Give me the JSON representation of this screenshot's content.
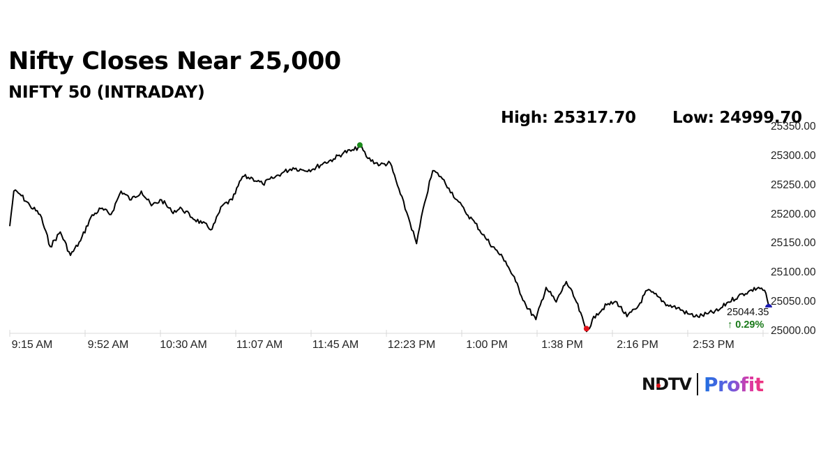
{
  "header": {
    "title": "Nifty Closes Near 25,000",
    "subtitle": "NIFTY 50 (INTRADAY)",
    "high_label": "High: 25317.70",
    "low_label": "Low: 24999.70"
  },
  "last_price": {
    "value": "25044.35",
    "change": "↑ 0.29%",
    "change_color": "#1a7a1a"
  },
  "logo": {
    "brand": "NDTV",
    "product": "Profit"
  },
  "colors": {
    "line": "#000000",
    "high_marker": "#1a8a1a",
    "low_marker": "#e0121a",
    "last_marker": "#1a1ab0",
    "axis": "#d0d0d0"
  },
  "chart_data": {
    "type": "line",
    "title": "Nifty Closes Near 25,000",
    "subtitle": "NIFTY 50 (INTRADAY)",
    "xlabel": "",
    "ylabel": "",
    "ylim": [
      25000,
      25350
    ],
    "y_ticks": [
      "25350.00",
      "25300.00",
      "25250.00",
      "25200.00",
      "25150.00",
      "25100.00",
      "25050.00",
      "25000.00"
    ],
    "x_ticks": [
      "9:15 AM",
      "9:52 AM",
      "10:30 AM",
      "11:07 AM",
      "11:45 AM",
      "12:23 PM",
      "1:00 PM",
      "1:38 PM",
      "2:16 PM",
      "2:53 PM"
    ],
    "grid": false,
    "legend": "none",
    "annotations": {
      "high": {
        "value": 25317.7,
        "time": "~12:08 PM",
        "marker": "green dot"
      },
      "low": {
        "value": 24999.7,
        "time": "~1:55 PM",
        "marker": "red dot"
      },
      "last": {
        "value": 25044.35,
        "change_pct": 0.29,
        "time": "3:30 PM",
        "marker": "blue semicircle"
      }
    },
    "series": [
      {
        "name": "NIFTY 50",
        "x": [
          "9:15",
          "9:17",
          "9:20",
          "9:25",
          "9:30",
          "9:35",
          "9:40",
          "9:45",
          "9:50",
          "9:55",
          "10:00",
          "10:05",
          "10:10",
          "10:15",
          "10:20",
          "10:25",
          "10:30",
          "10:35",
          "10:40",
          "10:45",
          "10:50",
          "10:55",
          "11:00",
          "11:05",
          "11:10",
          "11:15",
          "11:20",
          "11:25",
          "11:30",
          "11:35",
          "11:40",
          "11:45",
          "11:50",
          "11:55",
          "12:00",
          "12:05",
          "12:08",
          "12:12",
          "12:18",
          "12:23",
          "12:28",
          "12:32",
          "12:36",
          "12:40",
          "12:44",
          "12:48",
          "12:52",
          "12:56",
          "13:00",
          "13:05",
          "13:10",
          "13:15",
          "13:20",
          "13:25",
          "13:30",
          "13:35",
          "13:40",
          "13:45",
          "13:50",
          "13:55",
          "14:00",
          "14:05",
          "14:10",
          "14:15",
          "14:20",
          "14:25",
          "14:30",
          "14:35",
          "14:40",
          "14:45",
          "14:50",
          "14:55",
          "15:00",
          "15:05",
          "15:10",
          "15:15",
          "15:20",
          "15:25",
          "15:28",
          "15:30"
        ],
        "values": [
          25180,
          25240,
          25235,
          25215,
          25200,
          25145,
          25170,
          25130,
          25155,
          25195,
          25210,
          25200,
          25240,
          25225,
          25240,
          25215,
          25225,
          25205,
          25210,
          25195,
          25185,
          25175,
          25215,
          25225,
          25265,
          25262,
          25252,
          25262,
          25272,
          25280,
          25276,
          25278,
          25288,
          25295,
          25306,
          25310,
          25317.7,
          25296,
          25285,
          25288,
          25235,
          25195,
          25150,
          25220,
          25275,
          25265,
          25245,
          25225,
          25205,
          25185,
          25160,
          25140,
          25120,
          25085,
          25045,
          25020,
          25075,
          25050,
          25085,
          25050,
          24999.7,
          25030,
          25045,
          25050,
          25025,
          25040,
          25070,
          25060,
          25045,
          25040,
          25030,
          25025,
          25030,
          25035,
          25050,
          25060,
          25068,
          25075,
          25070,
          25044.35
        ]
      }
    ]
  },
  "y_axis": {
    "ticks": [
      "25350.00",
      "25300.00",
      "25250.00",
      "25200.00",
      "25150.00",
      "25100.00",
      "25050.00",
      "25000.00"
    ]
  },
  "x_axis": {
    "ticks": [
      "9:15 AM",
      "9:52 AM",
      "10:30 AM",
      "11:07 AM",
      "11:45 AM",
      "12:23 PM",
      "1:00 PM",
      "1:38 PM",
      "2:16 PM",
      "2:53 PM"
    ]
  }
}
